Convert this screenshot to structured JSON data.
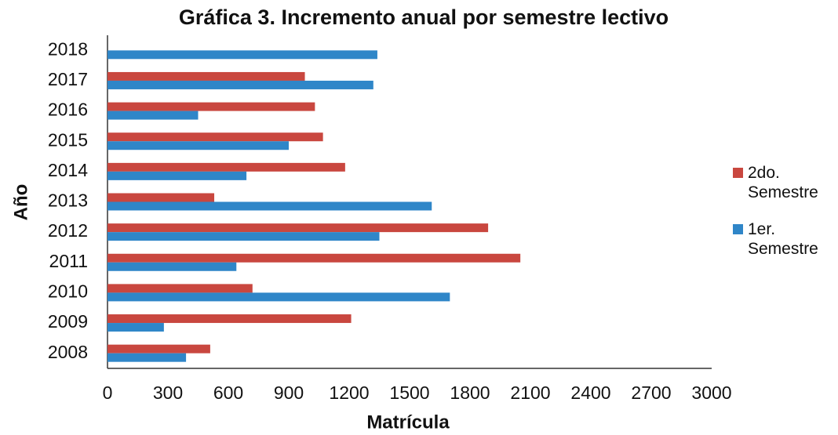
{
  "chart_data": {
    "type": "barh",
    "title": "Gráfica 3. Incremento anual por semestre lectivo",
    "xlabel": "Matrícula",
    "ylabel": "Año",
    "categories": [
      "2008",
      "2009",
      "2010",
      "2011",
      "2012",
      "2013",
      "2014",
      "2015",
      "2016",
      "2017",
      "2018"
    ],
    "series": [
      {
        "name": "2do. Semestre",
        "color": "#c9473f",
        "values": [
          510,
          1210,
          720,
          2050,
          1890,
          530,
          1180,
          1070,
          1030,
          980,
          null
        ]
      },
      {
        "name": "1er. Semestre",
        "color": "#2f86c8",
        "values": [
          390,
          280,
          1700,
          640,
          1350,
          1610,
          690,
          900,
          450,
          1320,
          1340
        ]
      }
    ],
    "xlim": [
      0,
      3000
    ],
    "xticks": [
      0,
      300,
      600,
      900,
      1200,
      1500,
      1800,
      2100,
      2400,
      2700,
      3000
    ],
    "grid": false,
    "legend": "right"
  }
}
